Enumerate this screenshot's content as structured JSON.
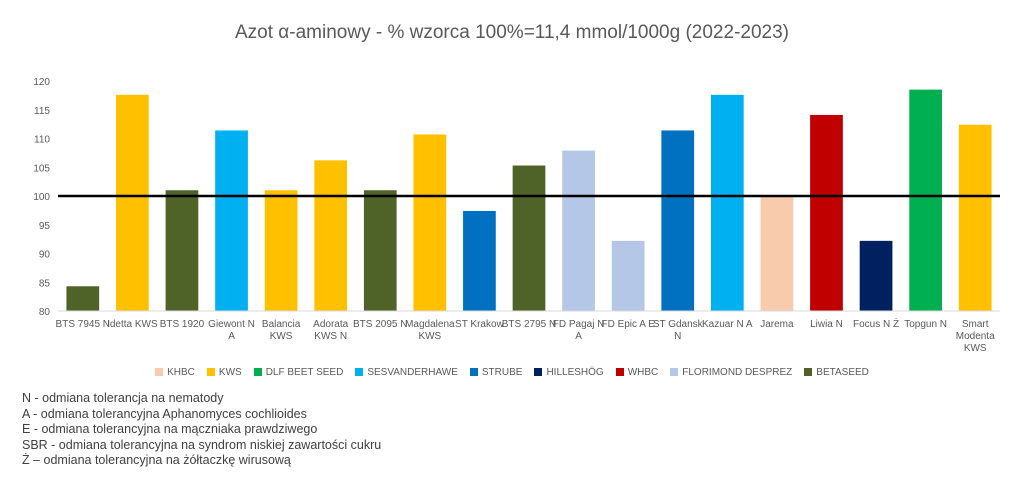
{
  "chart_data": {
    "type": "bar",
    "title": "Azot α-aminowy - % wzorca 100%=11,4 mmol/1000g (2022-2023)",
    "xlabel": "",
    "ylabel": "",
    "ylim": [
      80,
      120
    ],
    "yticks": [
      80,
      85,
      90,
      95,
      100,
      105,
      110,
      115,
      120
    ],
    "reference_line": 100,
    "grid": false,
    "legend_position": "bottom",
    "categories": [
      {
        "label": [
          "BTS 7945 N"
        ],
        "value": 84.3,
        "group": "BETASEED"
      },
      {
        "label": [
          "Idetta KWS"
        ],
        "value": 117.6,
        "group": "KWS"
      },
      {
        "label": [
          "BTS 1920"
        ],
        "value": 101.0,
        "group": "BETASEED"
      },
      {
        "label": [
          "Giewont N",
          "A"
        ],
        "value": 111.4,
        "group": "SESVANDERHAWE"
      },
      {
        "label": [
          "Balancia",
          "KWS"
        ],
        "value": 101.0,
        "group": "KWS"
      },
      {
        "label": [
          "Adorata",
          "KWS N"
        ],
        "value": 106.2,
        "group": "KWS"
      },
      {
        "label": [
          "BTS 2095 N"
        ],
        "value": 101.0,
        "group": "BETASEED"
      },
      {
        "label": [
          "Magdalena",
          "KWS"
        ],
        "value": 110.7,
        "group": "KWS"
      },
      {
        "label": [
          "ST Krakow"
        ],
        "value": 97.4,
        "group": "STRUBE"
      },
      {
        "label": [
          "BTS 2795 N"
        ],
        "value": 105.3,
        "group": "BETASEED"
      },
      {
        "label": [
          "FD Pagaj N",
          "A"
        ],
        "value": 107.9,
        "group": "FLORIMOND DESPREZ"
      },
      {
        "label": [
          "FD Epic A E"
        ],
        "value": 92.2,
        "group": "FLORIMOND DESPREZ"
      },
      {
        "label": [
          "ST Gdansk",
          "N"
        ],
        "value": 111.4,
        "group": "STRUBE"
      },
      {
        "label": [
          "Kazuar N A"
        ],
        "value": 117.6,
        "group": "SESVANDERHAWE"
      },
      {
        "label": [
          "Jarema"
        ],
        "value": 100.0,
        "group": "KHBC"
      },
      {
        "label": [
          "Liwia N"
        ],
        "value": 114.1,
        "group": "WHBC"
      },
      {
        "label": [
          "Focus N Ż"
        ],
        "value": 92.2,
        "group": "HILLESHÖG"
      },
      {
        "label": [
          "Topgun N"
        ],
        "value": 118.5,
        "group": "DLF BEET SEED"
      },
      {
        "label": [
          "Smart",
          "Modenta",
          "KWS"
        ],
        "value": 112.4,
        "group": "KWS"
      }
    ],
    "legend": [
      {
        "name": "KHBC",
        "color": "#F8CBAD"
      },
      {
        "name": "KWS",
        "color": "#FFC000"
      },
      {
        "name": "DLF BEET SEED",
        "color": "#00B050"
      },
      {
        "name": "SESVANDERHAWE",
        "color": "#00B0F0"
      },
      {
        "name": "STRUBE",
        "color": "#0070C0"
      },
      {
        "name": "HILLESHÖG",
        "color": "#002060"
      },
      {
        "name": "WHBC",
        "color": "#C00000"
      },
      {
        "name": "FLORIMOND DESPREZ",
        "color": "#B4C7E7"
      },
      {
        "name": "BETASEED",
        "color": "#4F6228"
      }
    ]
  },
  "notes": [
    "N - odmiana tolerancja na nematody",
    "A - odmiana tolerancyjna Aphanomyces cochlioides",
    "E - odmiana tolerancyjna na mączniaka prawdziwego",
    "SBR - odmiana tolerancyjna na syndrom niskiej zawartości cukru",
    "Ż – odmiana tolerancyjna na żółtaczkę wirusową"
  ]
}
